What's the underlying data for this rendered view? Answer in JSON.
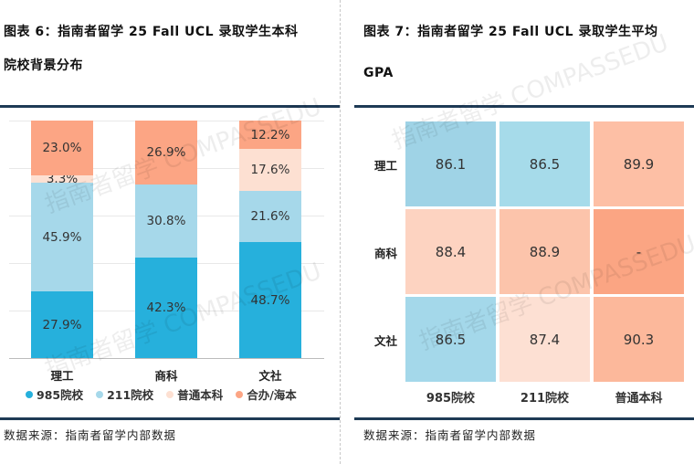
{
  "left": {
    "title_line1": "图表 6：指南者留学 25 Fall UCL 录取学生本科",
    "title_line2": "院校背景分布",
    "source": "数据来源：指南者留学内部数据"
  },
  "right": {
    "title_line1": "图表 7：指南者留学 25 Fall UCL 录取学生平均",
    "title_line2": "GPA",
    "source": "数据来源：指南者留学内部数据"
  },
  "watermark": "指南者留学 COMPASSEDU",
  "chart_data": [
    {
      "type": "bar",
      "stacked": true,
      "title": "指南者留学 25 Fall UCL 录取学生本科院校背景分布",
      "categories": [
        "理工",
        "商科",
        "文社"
      ],
      "series": [
        {
          "name": "985院校",
          "color": "#26b0dc",
          "values": [
            27.9,
            42.3,
            48.7
          ],
          "labels": [
            "27.9%",
            "42.3%",
            "48.7%"
          ]
        },
        {
          "name": "211院校",
          "color": "#a6d8ea",
          "values": [
            45.9,
            30.8,
            21.6
          ],
          "labels": [
            "45.9%",
            "30.8%",
            "21.6%"
          ]
        },
        {
          "name": "普通本科",
          "color": "#fde0d2",
          "values": [
            3.3,
            0,
            17.6
          ],
          "labels": [
            "3.3%",
            "",
            "17.6%"
          ]
        },
        {
          "name": "合办/海本",
          "color": "#fca584",
          "values": [
            23.0,
            26.9,
            12.2
          ],
          "labels": [
            "23.0%",
            "26.9%",
            "12.2%"
          ]
        }
      ],
      "ylim": [
        0,
        100
      ],
      "legend": "bottom",
      "grid": true
    },
    {
      "type": "heatmap",
      "title": "指南者留学 25 Fall UCL 录取学生平均 GPA",
      "rows": [
        "理工",
        "商科",
        "文社"
      ],
      "columns": [
        "985院校",
        "211院校",
        "普通本科"
      ],
      "values": [
        [
          "86.1",
          "86.5",
          "89.9"
        ],
        [
          "88.4",
          "88.9",
          "-"
        ],
        [
          "86.5",
          "87.4",
          "90.3"
        ]
      ],
      "colors": [
        [
          "#9fd3e6",
          "#a6dbea",
          "#fdbfa5"
        ],
        [
          "#fdd3c1",
          "#fcc4ab",
          "#fba583"
        ],
        [
          "#a4d8ea",
          "#fde0d3",
          "#fcb89b"
        ]
      ]
    }
  ]
}
